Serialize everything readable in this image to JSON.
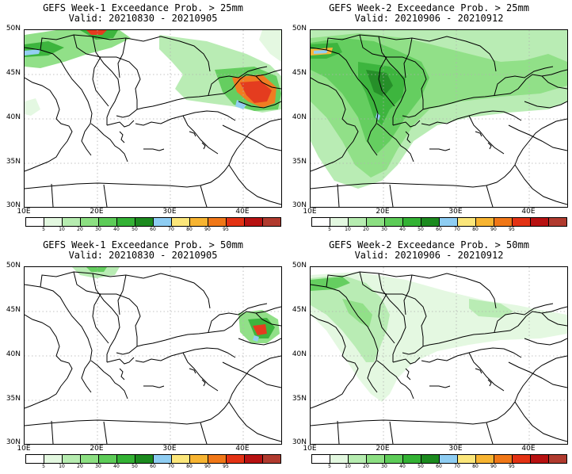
{
  "panels": [
    {
      "title": "GEFS Week-1 Exceedance Prob. > 25mm",
      "valid": "Valid: 20210830 - 20210905"
    },
    {
      "title": "GEFS Week-2 Exceedance Prob. > 25mm",
      "valid": "Valid: 20210906 - 20210912"
    },
    {
      "title": "GEFS Week-1 Exceedance Prob. > 50mm",
      "valid": "Valid: 20210830 - 20210905"
    },
    {
      "title": "GEFS Week-2 Exceedance Prob. > 50mm",
      "valid": "Valid: 20210906 - 20210912"
    }
  ],
  "axes": {
    "lat_labels": [
      "50N",
      "45N",
      "40N",
      "35N",
      "30N"
    ],
    "lon_labels": [
      "10E",
      "20E",
      "30E",
      "40E"
    ]
  },
  "colorbar": {
    "labels": [
      "5",
      "10",
      "20",
      "30",
      "40",
      "50",
      "60",
      "70",
      "80",
      "90",
      "95"
    ],
    "colors": [
      "#ffffff",
      "#e3f8e0",
      "#b6ecb0",
      "#8cdf82",
      "#5dcc58",
      "#33b234",
      "#1b8a1e",
      "#8ecdf2",
      "#fbe67a",
      "#f7b431",
      "#f07717",
      "#e33214",
      "#b71111",
      "#b03a2e"
    ]
  },
  "map": {
    "land_color": "#ffffff",
    "border_color": "#000000",
    "grid": "dotted"
  }
}
